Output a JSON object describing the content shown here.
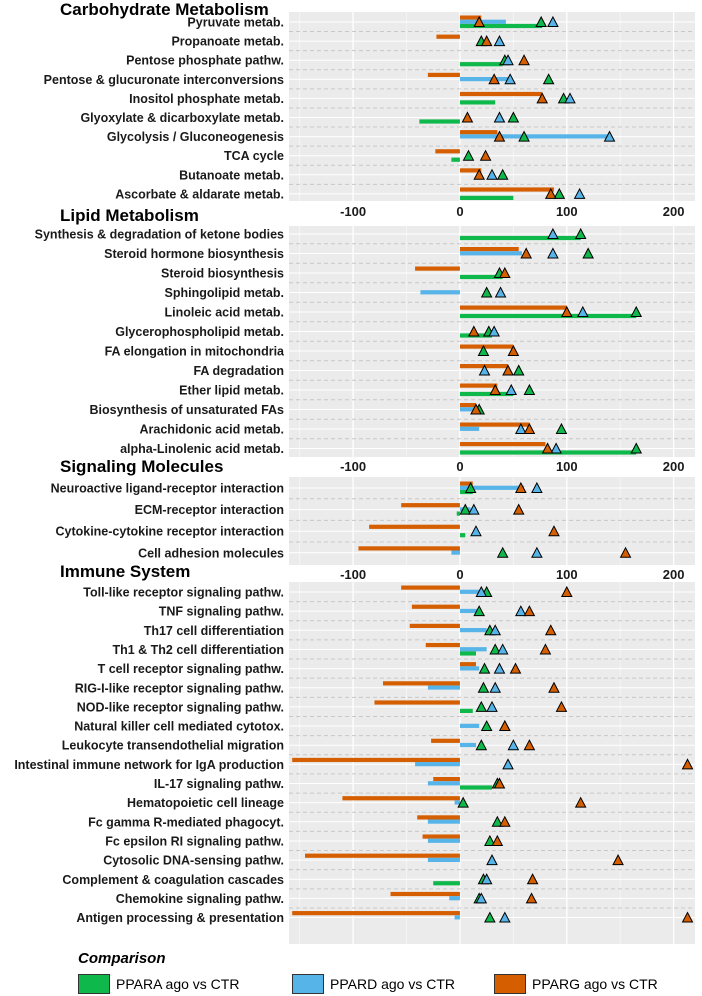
{
  "chart_data": [
    {
      "type": "bar",
      "title": "Carbohydrate Metabolism",
      "categories": [
        "Pyruvate metab.",
        "Propanoate metab.",
        "Pentose phosphate pathw.",
        "Pentose & glucuronate interconversions",
        "Inositol phosphate metab.",
        "Glyoxylate & dicarboxylate metab.",
        "Glycolysis / Gluconeogenesis",
        "TCA cycle",
        "Butanoate metab.",
        "Ascorbate & aldarate metab."
      ],
      "series": [
        {
          "name": "PPARA ago vs CTR",
          "bar": [
            77,
            0,
            40,
            0,
            33,
            -38,
            0,
            -8,
            0,
            50
          ],
          "triangle": [
            76,
            20,
            42,
            83,
            97,
            50,
            60,
            8,
            40,
            93
          ]
        },
        {
          "name": "PPARD ago vs CTR",
          "bar": [
            43,
            0,
            0,
            45,
            0,
            0,
            140,
            0,
            0,
            0
          ],
          "triangle": [
            87,
            37,
            45,
            47,
            103,
            37,
            140,
            0,
            30,
            112
          ]
        },
        {
          "name": "PPARG ago vs CTR",
          "bar": [
            20,
            -22,
            0,
            -30,
            77,
            0,
            35,
            -23,
            20,
            88
          ],
          "triangle": [
            18,
            25,
            60,
            32,
            77,
            7,
            37,
            24,
            18,
            85
          ]
        }
      ],
      "xlim": [
        -160,
        220
      ],
      "xticks": [
        "-100",
        "0",
        "100",
        "200"
      ]
    },
    {
      "type": "bar",
      "title": "Lipid Metabolism",
      "categories": [
        "Synthesis & degradation of ketone bodies",
        "Steroid hormone biosynthesis",
        "Steroid biosynthesis",
        "Sphingolipid metab.",
        "Linoleic acid metab.",
        "Glycerophospholipid metab.",
        "FA elongation in mitochondria",
        "FA degradation",
        "Ether lipid metab.",
        "Biosynthesis of unsaturated FAs",
        "Arachidonic acid metab.",
        "alpha-Linolenic acid metab."
      ],
      "series": [
        {
          "name": "PPARA ago vs CTR",
          "bar": [
            113,
            0,
            40,
            0,
            165,
            30,
            0,
            0,
            50,
            0,
            0,
            165
          ],
          "triangle": [
            113,
            120,
            37,
            25,
            165,
            27,
            22,
            55,
            65,
            18,
            95,
            165
          ]
        },
        {
          "name": "PPARD ago vs CTR",
          "bar": [
            0,
            58,
            0,
            -37,
            0,
            0,
            0,
            0,
            0,
            20,
            18,
            0
          ],
          "triangle": [
            87,
            87,
            0,
            38,
            115,
            32,
            0,
            23,
            48,
            0,
            57,
            90
          ]
        },
        {
          "name": "PPARG ago vs CTR",
          "bar": [
            0,
            55,
            -42,
            0,
            100,
            0,
            50,
            45,
            35,
            15,
            65,
            80
          ],
          "triangle": [
            0,
            62,
            42,
            0,
            100,
            13,
            50,
            45,
            33,
            15,
            65,
            82
          ]
        }
      ],
      "xlim": [
        -160,
        220
      ],
      "xticks": [
        "-100",
        "0",
        "100",
        "200"
      ]
    },
    {
      "type": "bar",
      "title": "Signaling Molecules",
      "categories": [
        "Neuroactive ligand-receptor interaction",
        "ECM-receptor interaction",
        "Cytokine-cytokine receptor interaction",
        "Cell adhesion molecules"
      ],
      "series": [
        {
          "name": "PPARA ago vs CTR",
          "bar": [
            12,
            -3,
            5,
            0
          ],
          "triangle": [
            10,
            5,
            0,
            40
          ]
        },
        {
          "name": "PPARD ago vs CTR",
          "bar": [
            60,
            10,
            0,
            -8
          ],
          "triangle": [
            72,
            13,
            15,
            72
          ]
        },
        {
          "name": "PPARG ago vs CTR",
          "bar": [
            12,
            -55,
            -85,
            -95
          ],
          "triangle": [
            57,
            55,
            88,
            155
          ]
        }
      ],
      "xlim": [
        -160,
        220
      ],
      "xticks": [
        "-100",
        "0",
        "100",
        "200"
      ]
    },
    {
      "type": "bar",
      "title": "Immune System",
      "categories": [
        "Toll-like receptor signaling pathw.",
        "TNF signaling pathw.",
        "Th17 cell differentiation",
        "Th1 & Th2 cell differentiation",
        "T cell receptor signaling pathw.",
        "RIG-I-like receptor signaling pathw.",
        "NOD-like receptor signaling pathw.",
        "Natural killer cell mediated cytotox.",
        "Leukocyte transendothelial migration",
        "Intestinal immune network for IgA production",
        "IL-17 signaling pathw.",
        "Hematopoietic cell lineage",
        "Fc gamma R-mediated phagocyt.",
        "Fc epsilon RI signaling pathw.",
        "Cytosolic DNA-sensing pathw.",
        "Complement & coagulation cascades",
        "Chemokine signaling pathw.",
        "Antigen processing & presentation"
      ],
      "series": [
        {
          "name": "PPARA ago vs CTR",
          "bar": [
            0,
            0,
            0,
            15,
            0,
            0,
            12,
            0,
            0,
            0,
            30,
            0,
            0,
            0,
            0,
            -25,
            0,
            0
          ],
          "triangle": [
            25,
            18,
            28,
            33,
            23,
            22,
            20,
            25,
            20,
            0,
            35,
            3,
            35,
            28,
            0,
            22,
            18,
            28
          ]
        },
        {
          "name": "PPARD ago vs CTR",
          "bar": [
            22,
            20,
            25,
            25,
            18,
            -30,
            0,
            18,
            15,
            -42,
            -30,
            -5,
            -30,
            -30,
            -30,
            0,
            -10,
            -5
          ],
          "triangle": [
            20,
            57,
            33,
            40,
            37,
            33,
            30,
            42,
            50,
            45,
            0,
            0,
            0,
            0,
            30,
            25,
            20,
            42
          ]
        },
        {
          "name": "PPARG ago vs CTR",
          "bar": [
            -55,
            -45,
            -47,
            -32,
            15,
            -72,
            -80,
            0,
            -27,
            -157,
            -25,
            -110,
            -40,
            -35,
            -145,
            0,
            -65,
            -157
          ],
          "triangle": [
            100,
            65,
            85,
            80,
            52,
            88,
            95,
            42,
            65,
            213,
            37,
            113,
            42,
            35,
            148,
            68,
            67,
            213
          ]
        }
      ],
      "xlim": [
        -160,
        220
      ],
      "xticks": [
        "-100",
        "0",
        "100",
        "200"
      ]
    }
  ],
  "legend": {
    "title": "Comparison",
    "items": [
      {
        "label": "PPARA ago vs CTR",
        "color": "#0fb84a"
      },
      {
        "label": "PPARD ago vs CTR",
        "color": "#56b4e9"
      },
      {
        "label": "PPARG ago vs CTR",
        "color": "#d55e00"
      }
    ]
  },
  "colors": {
    "panel_bg": "#ebebeb",
    "grid": "#ffffff",
    "dashed": "#c8c8c8"
  }
}
